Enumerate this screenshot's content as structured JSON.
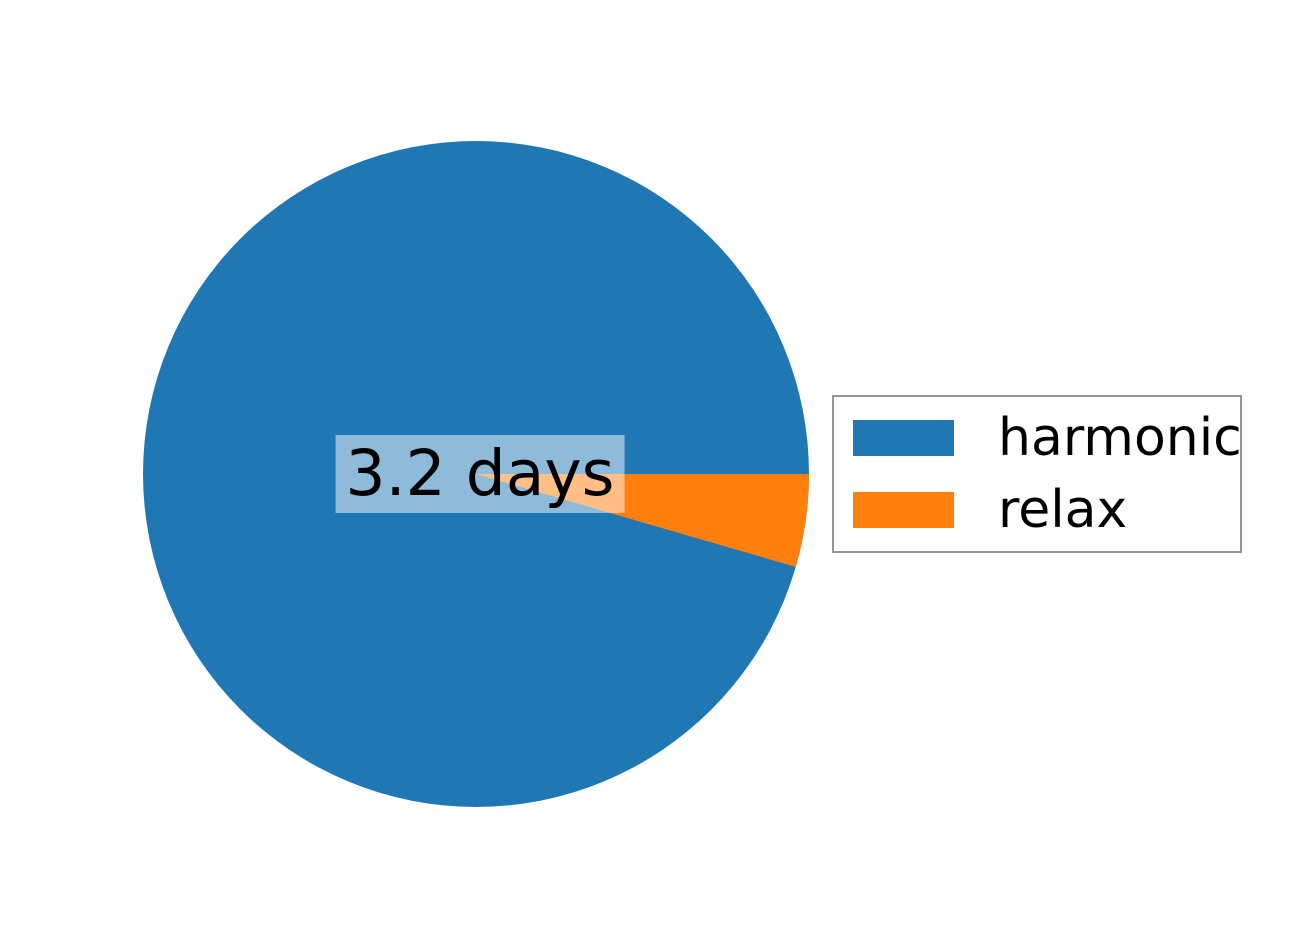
{
  "chart_data": {
    "type": "pie",
    "categories": [
      "harmonic",
      "relax"
    ],
    "values": [
      95.5,
      4.5
    ],
    "unit": "percent_of_total",
    "colors": [
      "#1f77b4",
      "#ff7f0e"
    ],
    "start_angle_deg": 0,
    "direction": "counterclockwise",
    "center_label": "3.2 days",
    "legend_position": "center right",
    "legend_entries": [
      "harmonic",
      "relax"
    ],
    "title": "",
    "notes": "relax wedge spans roughly 16.3 degrees immediately below the horizontal right axis; center label sits on a semi-transparent white box"
  },
  "styles": {
    "center_label_background": "rgba(255,255,255,0.5)",
    "center_label_text_color": "#000000",
    "legend_border_color": "#949494",
    "background_color": "#ffffff"
  }
}
